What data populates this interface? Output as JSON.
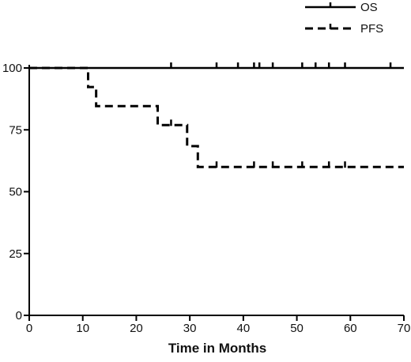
{
  "chart_data": {
    "type": "line",
    "subtype": "kaplan-meier step",
    "title": "",
    "xlabel": "Time in Months",
    "ylabel": "",
    "xlim": [
      0,
      70
    ],
    "ylim": [
      0,
      100
    ],
    "xticks": [
      0,
      10,
      20,
      30,
      40,
      50,
      60,
      70
    ],
    "yticks": [
      0,
      25,
      50,
      75,
      100
    ],
    "grid": false,
    "legend_position": "top-right",
    "series": [
      {
        "name": "OS",
        "style": "solid",
        "color": "#000000",
        "x": [
          0,
          70
        ],
        "y": [
          100,
          100
        ],
        "censor_x": [
          26.5,
          35,
          39,
          42,
          43,
          45.5,
          51,
          53.5,
          56,
          59,
          67.5
        ]
      },
      {
        "name": "PFS",
        "style": "dashed",
        "color": "#000000",
        "x": [
          0,
          11,
          12.5,
          24,
          29.5,
          31.5,
          70
        ],
        "y": [
          100,
          92.3,
          84.6,
          76.9,
          68.4,
          60,
          60
        ],
        "censor_x": [
          26.5,
          35,
          42,
          45.5,
          51,
          56,
          59
        ]
      }
    ]
  }
}
